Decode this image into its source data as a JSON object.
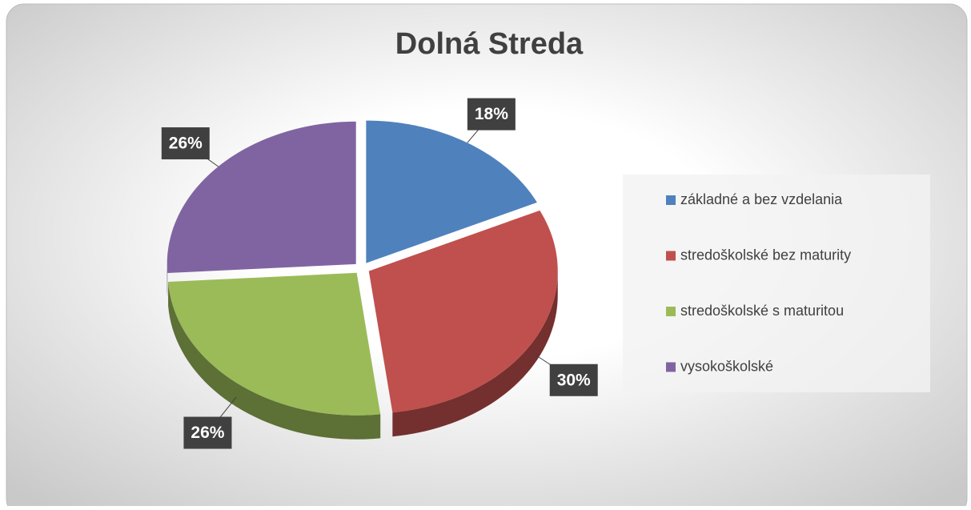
{
  "chart_data": {
    "type": "pie",
    "title": "Dolná Streda",
    "categories": [
      "základné a bez vzdelania",
      "stredoškolské bez maturity",
      "stredoškolské s maturitou",
      "vysokoškolské"
    ],
    "values": [
      18,
      30,
      26,
      26
    ],
    "value_labels": [
      "18%",
      "30%",
      "26%",
      "26%"
    ],
    "colors": [
      "#4f81bd",
      "#c0504d",
      "#9bbb59",
      "#8064a2"
    ],
    "legend": "right"
  }
}
